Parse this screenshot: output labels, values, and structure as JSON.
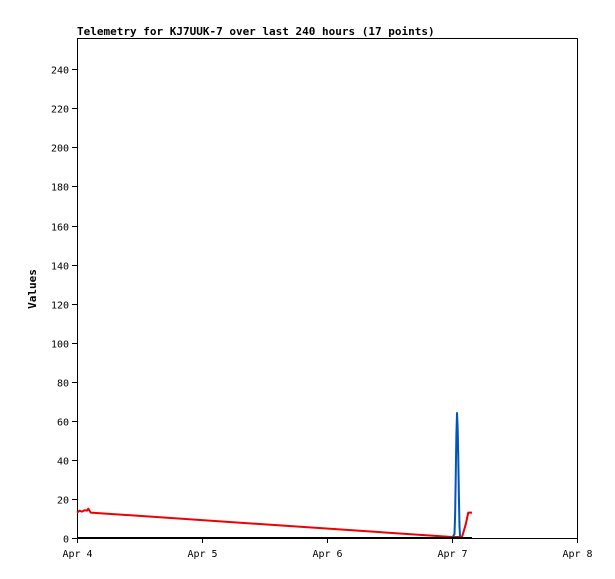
{
  "chart_data": {
    "type": "line",
    "title": "Telemetry for KJ7UUK-7 over last 240 hours (17 points)",
    "xlabel": "",
    "ylabel": "Values",
    "x_ticks": [
      "Apr 4",
      "Apr 5",
      "Apr 6",
      "Apr 7",
      "Apr 8"
    ],
    "x_range_days": [
      4,
      8
    ],
    "ylim": [
      0,
      256
    ],
    "y_ticks": [
      0,
      20,
      40,
      60,
      80,
      100,
      120,
      140,
      160,
      180,
      200,
      220,
      240
    ],
    "grid": false,
    "series": [
      {
        "color": "#ee0000",
        "points": [
          [
            4.0,
            13.0
          ],
          [
            4.02,
            14.0
          ],
          [
            4.04,
            13.5
          ],
          [
            4.06,
            14.2
          ],
          [
            4.08,
            14.0
          ],
          [
            4.09,
            15.0
          ],
          [
            4.11,
            13.0
          ],
          [
            7.0,
            0.5
          ],
          [
            7.08,
            0.5
          ],
          [
            7.11,
            7.0
          ],
          [
            7.13,
            13.0
          ],
          [
            7.16,
            13.0
          ]
        ]
      },
      {
        "color": "#0055bb",
        "points": [
          [
            7.0,
            0.0
          ],
          [
            7.02,
            2.0
          ],
          [
            7.025,
            12.0
          ],
          [
            7.03,
            32.0
          ],
          [
            7.035,
            53.0
          ],
          [
            7.04,
            64.0
          ],
          [
            7.045,
            57.0
          ],
          [
            7.05,
            42.0
          ],
          [
            7.055,
            22.0
          ],
          [
            7.06,
            6.0
          ],
          [
            7.065,
            0.0
          ]
        ]
      },
      {
        "color": "#000000",
        "points": [
          [
            4.0,
            0.0
          ],
          [
            7.16,
            0.0
          ]
        ]
      }
    ]
  }
}
